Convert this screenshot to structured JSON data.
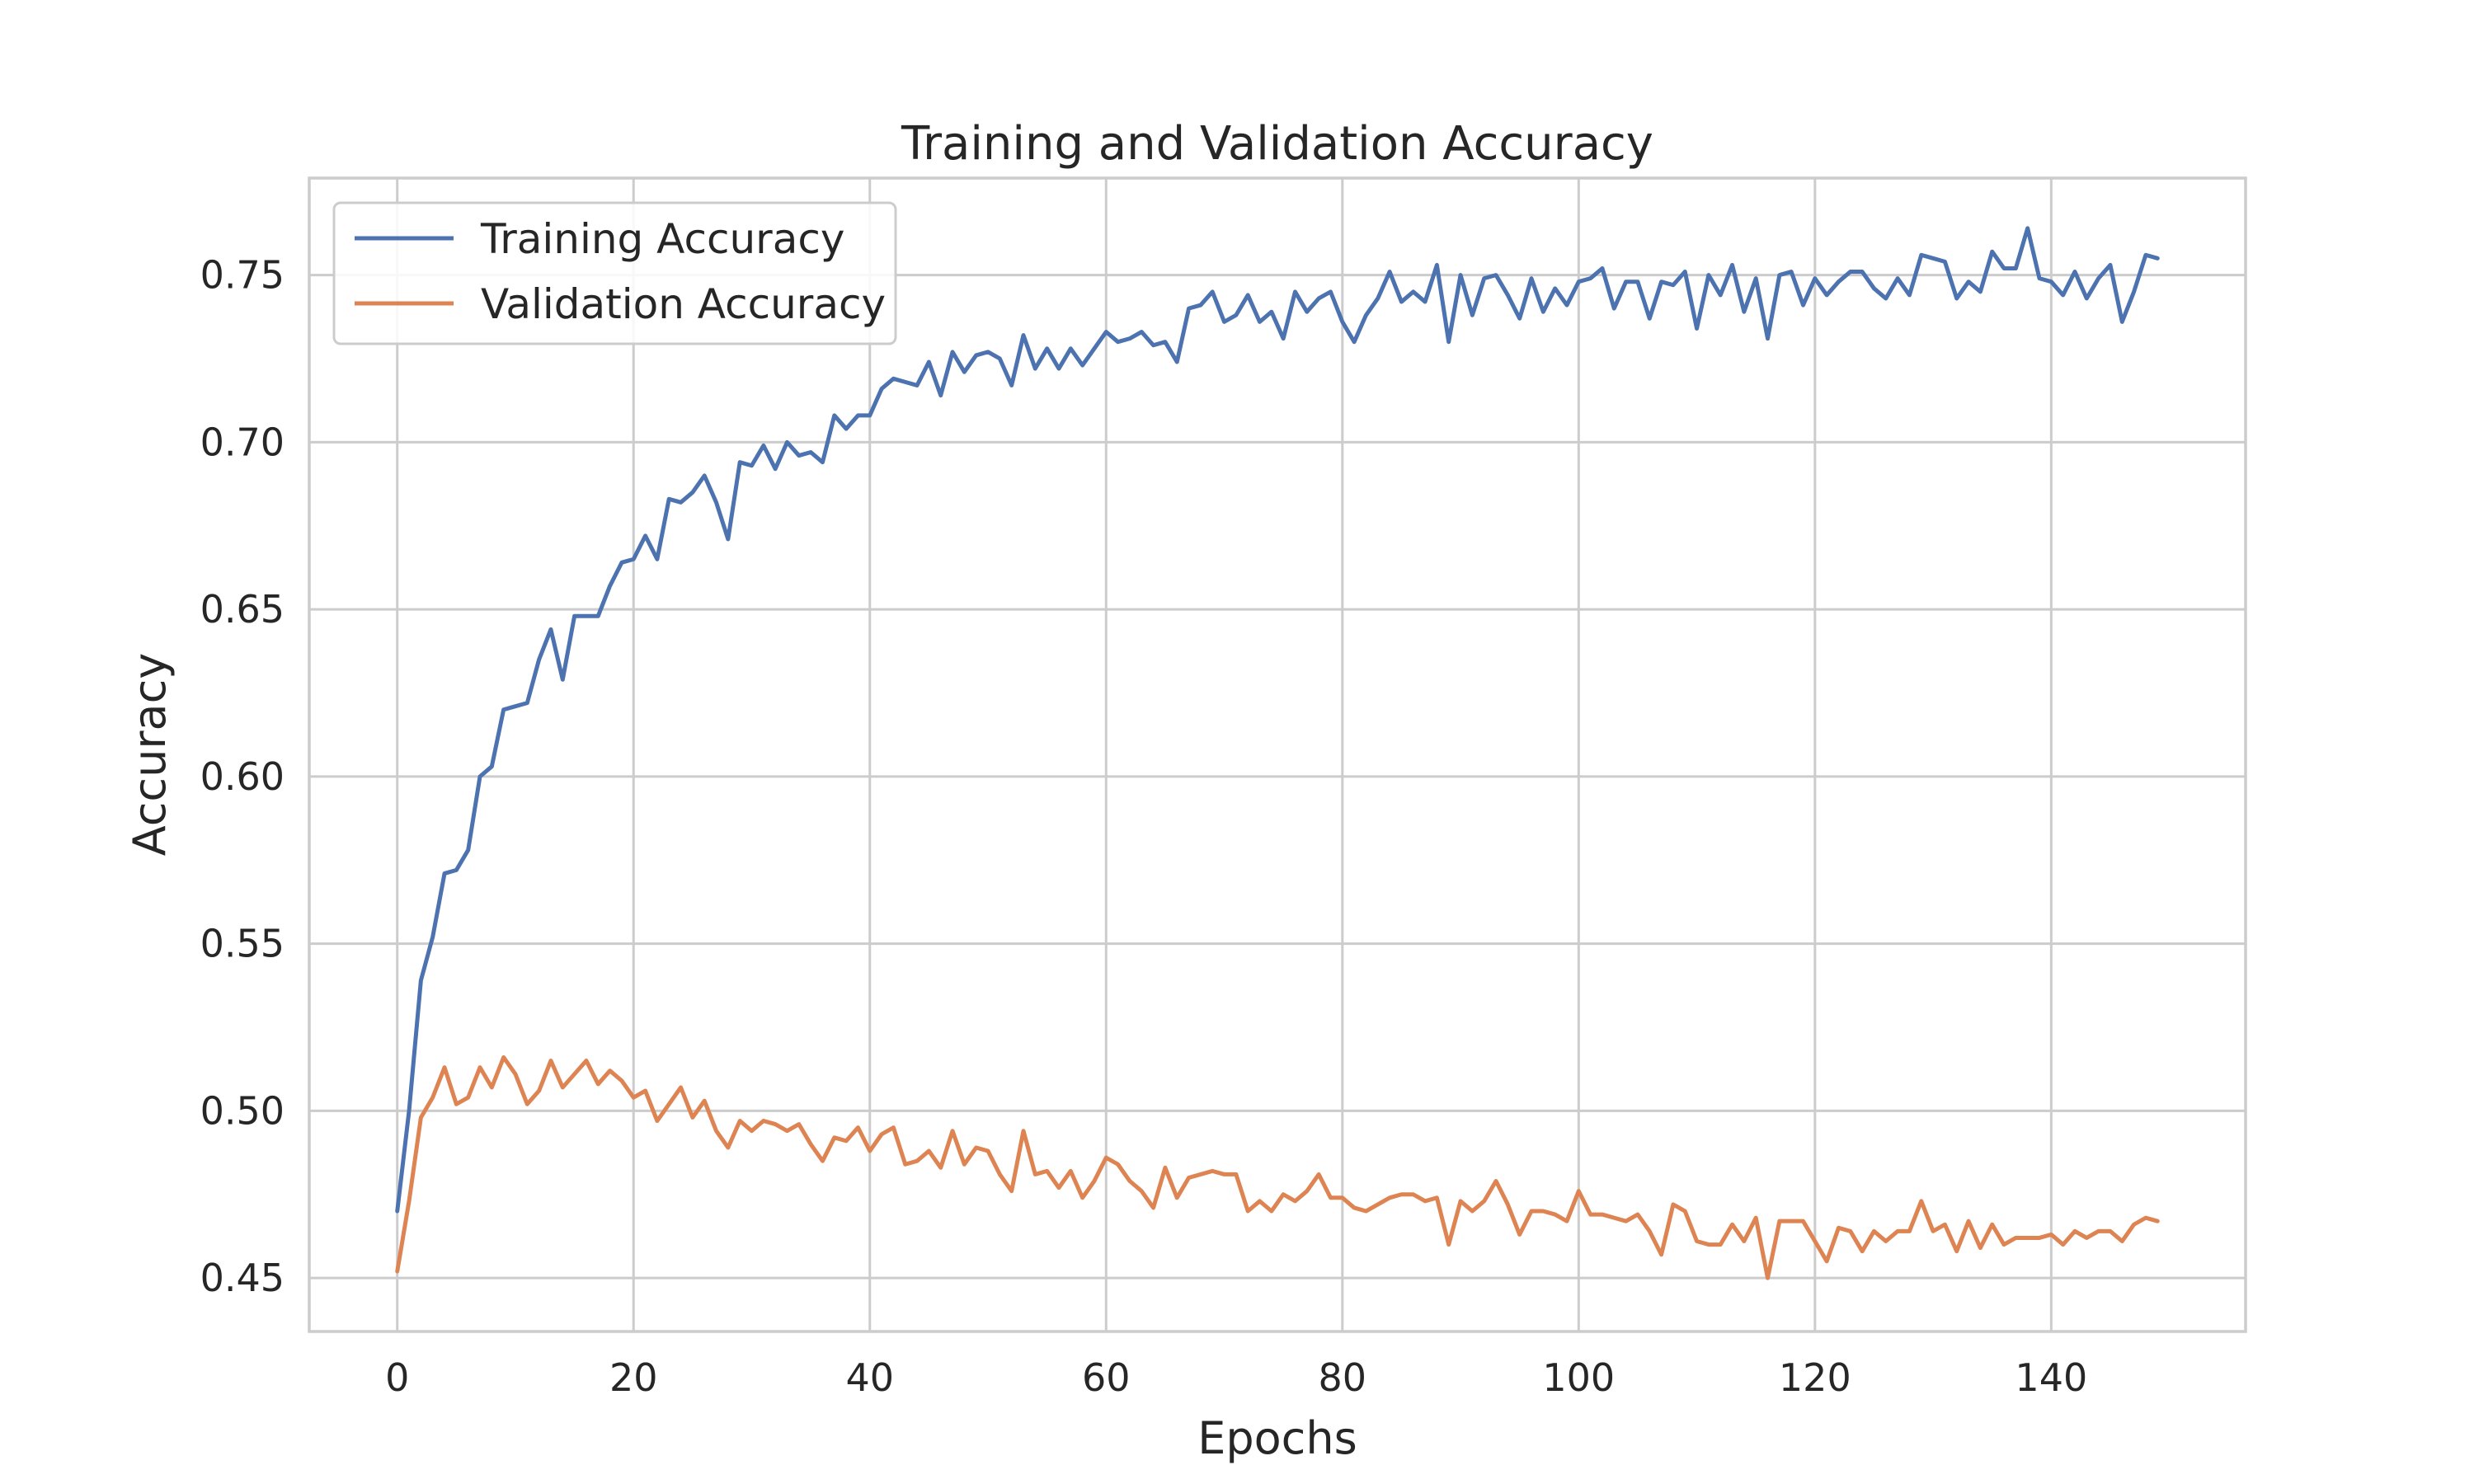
{
  "chart_data": {
    "type": "line",
    "title": "Training and Validation Accuracy",
    "xlabel": "Epochs",
    "ylabel": "Accuracy",
    "xlim": [
      -7.45,
      156.45
    ],
    "ylim": [
      0.434,
      0.779
    ],
    "xticks": [
      0,
      20,
      40,
      60,
      80,
      100,
      120,
      140
    ],
    "yticks": [
      0.45,
      0.5,
      0.55,
      0.6,
      0.65,
      0.7,
      0.75
    ],
    "ytick_labels": [
      "0.45",
      "0.50",
      "0.55",
      "0.60",
      "0.65",
      "0.70",
      "0.75"
    ],
    "grid": true,
    "legend_position": "upper-left",
    "series": [
      {
        "name": "Training Accuracy",
        "color": "#4c72b0",
        "values": [
          0.47,
          0.5,
          0.539,
          0.552,
          0.571,
          0.572,
          0.578,
          0.6,
          0.603,
          0.62,
          0.621,
          0.622,
          0.635,
          0.644,
          0.629,
          0.648,
          0.648,
          0.648,
          0.657,
          0.664,
          0.665,
          0.672,
          0.665,
          0.683,
          0.682,
          0.685,
          0.69,
          0.682,
          0.671,
          0.694,
          0.693,
          0.699,
          0.692,
          0.7,
          0.696,
          0.697,
          0.694,
          0.708,
          0.704,
          0.708,
          0.708,
          0.716,
          0.719,
          0.718,
          0.717,
          0.724,
          0.714,
          0.727,
          0.721,
          0.726,
          0.727,
          0.725,
          0.717,
          0.732,
          0.722,
          0.728,
          0.722,
          0.728,
          0.723,
          0.728,
          0.733,
          0.73,
          0.731,
          0.733,
          0.729,
          0.73,
          0.724,
          0.74,
          0.741,
          0.745,
          0.736,
          0.738,
          0.744,
          0.736,
          0.739,
          0.731,
          0.745,
          0.739,
          0.743,
          0.745,
          0.736,
          0.73,
          0.738,
          0.743,
          0.751,
          0.742,
          0.745,
          0.742,
          0.753,
          0.73,
          0.75,
          0.738,
          0.749,
          0.75,
          0.744,
          0.737,
          0.749,
          0.739,
          0.746,
          0.741,
          0.748,
          0.749,
          0.752,
          0.74,
          0.748,
          0.748,
          0.737,
          0.748,
          0.747,
          0.751,
          0.734,
          0.75,
          0.744,
          0.753,
          0.739,
          0.749,
          0.731,
          0.75,
          0.751,
          0.741,
          0.749,
          0.744,
          0.748,
          0.751,
          0.751,
          0.746,
          0.743,
          0.749,
          0.744,
          0.756,
          0.755,
          0.754,
          0.743,
          0.748,
          0.745,
          0.757,
          0.752,
          0.752,
          0.764,
          0.749,
          0.748,
          0.744,
          0.751,
          0.743,
          0.749,
          0.753,
          0.736,
          0.745,
          0.756,
          0.755
        ]
      },
      {
        "name": "Validation Accuracy",
        "color": "#dd8452",
        "values": [
          0.452,
          0.473,
          0.498,
          0.504,
          0.513,
          0.502,
          0.504,
          0.513,
          0.507,
          0.516,
          0.511,
          0.502,
          0.506,
          0.515,
          0.507,
          0.511,
          0.515,
          0.508,
          0.512,
          0.509,
          0.504,
          0.506,
          0.497,
          0.502,
          0.507,
          0.498,
          0.503,
          0.494,
          0.489,
          0.497,
          0.494,
          0.497,
          0.496,
          0.494,
          0.496,
          0.49,
          0.485,
          0.492,
          0.491,
          0.495,
          0.488,
          0.493,
          0.495,
          0.484,
          0.485,
          0.488,
          0.483,
          0.494,
          0.484,
          0.489,
          0.488,
          0.481,
          0.476,
          0.494,
          0.481,
          0.482,
          0.477,
          0.482,
          0.474,
          0.479,
          0.486,
          0.484,
          0.479,
          0.476,
          0.471,
          0.483,
          0.474,
          0.48,
          0.481,
          0.482,
          0.481,
          0.481,
          0.47,
          0.473,
          0.47,
          0.475,
          0.473,
          0.476,
          0.481,
          0.474,
          0.474,
          0.471,
          0.47,
          0.472,
          0.474,
          0.475,
          0.475,
          0.473,
          0.474,
          0.46,
          0.473,
          0.47,
          0.473,
          0.479,
          0.472,
          0.463,
          0.47,
          0.47,
          0.469,
          0.467,
          0.476,
          0.469,
          0.469,
          0.468,
          0.467,
          0.469,
          0.464,
          0.457,
          0.472,
          0.47,
          0.461,
          0.46,
          0.46,
          0.466,
          0.461,
          0.468,
          0.45,
          0.467,
          0.467,
          0.467,
          0.461,
          0.455,
          0.465,
          0.464,
          0.458,
          0.464,
          0.461,
          0.464,
          0.464,
          0.473,
          0.464,
          0.466,
          0.458,
          0.467,
          0.459,
          0.466,
          0.46,
          0.462,
          0.462,
          0.462,
          0.463,
          0.46,
          0.464,
          0.462,
          0.464,
          0.464,
          0.461,
          0.466,
          0.468,
          0.467
        ]
      }
    ]
  }
}
